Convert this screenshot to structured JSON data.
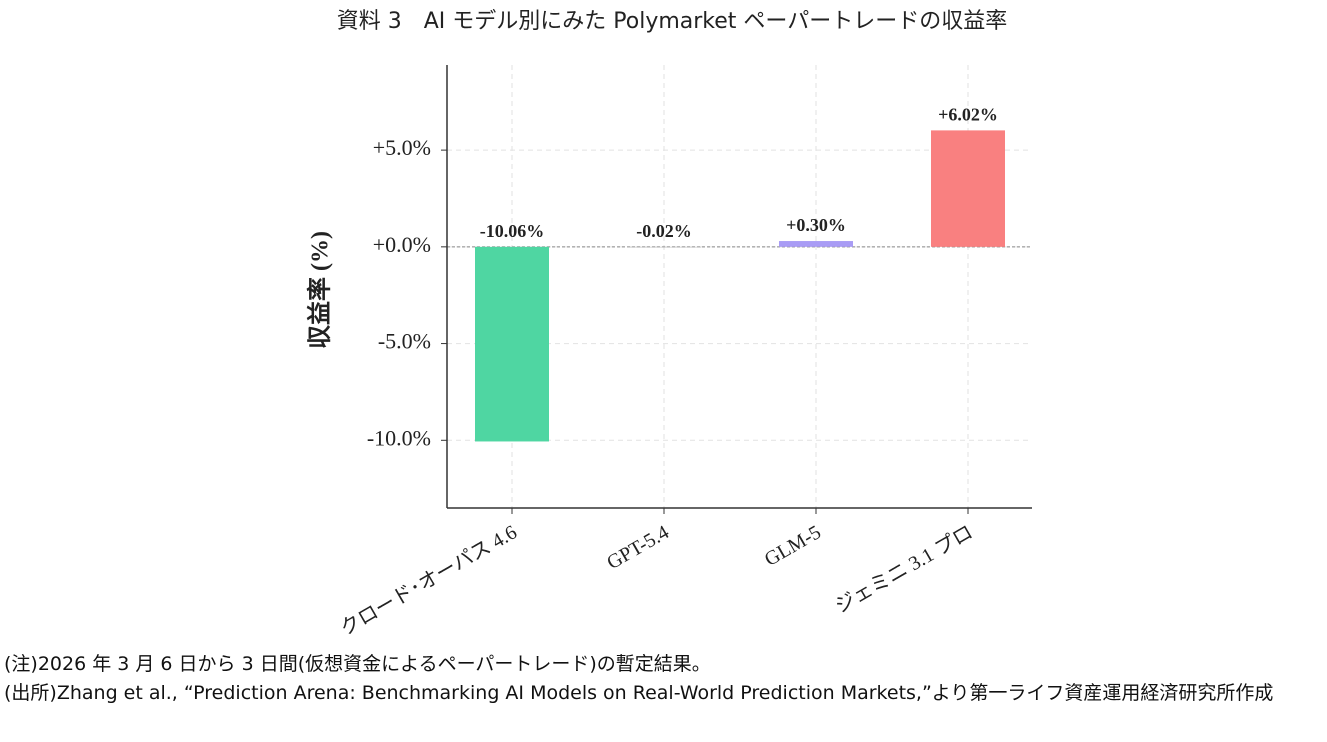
{
  "chart_data": {
    "type": "bar",
    "title": "資料 3　AI モデル別にみた Polymarket ペーパートレードの収益率",
    "y_label": "収益率 (%)",
    "categories": [
      "クロード･オーパス 4.6",
      "GPT-5.4",
      "GLM-5",
      "ジェミニ 3.1 プロ"
    ],
    "values": [
      -10.06,
      -0.02,
      0.3,
      6.02
    ],
    "value_labels": [
      "-10.06%",
      "-0.02%",
      "+0.30%",
      "+6.02%"
    ],
    "colors": [
      "#4fd6a2",
      "#b0b0b0",
      "#a99cf5",
      "#f98080"
    ],
    "ylim": [
      -13.5,
      9.4
    ],
    "yticks": [
      {
        "value": -10,
        "label": "-10.0%"
      },
      {
        "value": -5,
        "label": "-5.0%"
      },
      {
        "value": 0,
        "label": "+0.0%"
      },
      {
        "value": 5,
        "label": "+5.0%"
      }
    ],
    "grid": true
  },
  "notes": [
    "(注)2026 年 3 月 6 日から 3 日間(仮想資金によるペーパートレード)の暫定結果。",
    "(出所)Zhang et al., “Prediction Arena: Benchmarking AI Models on Real-World Prediction Markets,”より第一ライフ資産運用経済研究所作成"
  ]
}
